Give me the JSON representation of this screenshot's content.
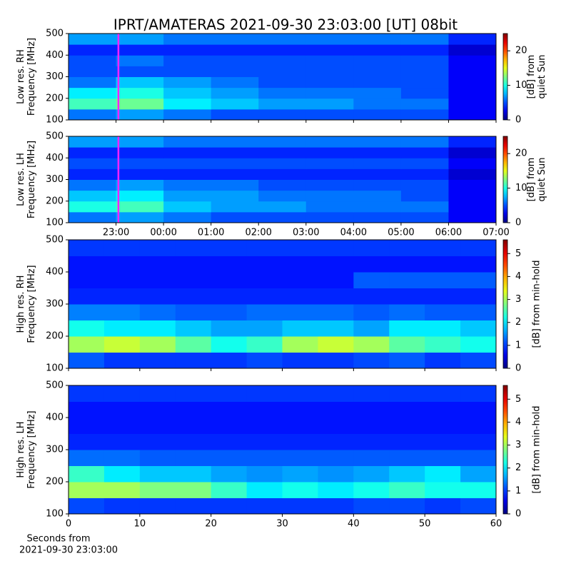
{
  "title": "IPRT/AMATERAS 2021-09-30 23:03:00 [UT]   08bit",
  "chart_data": [
    {
      "type": "heatmap",
      "ylabel": [
        "Low res. RH",
        "Frequency [MHz]"
      ],
      "clabel": [
        "[dB] from",
        "quiet Sun"
      ],
      "sharex": 1,
      "xlim": [
        22,
        31
      ],
      "ylim": [
        100,
        500
      ],
      "yticks": [
        100,
        200,
        300,
        400,
        500
      ],
      "clim": [
        0,
        25
      ],
      "cticks": [
        0,
        10,
        20
      ],
      "colormap": "jet",
      "xbins": [
        22,
        23,
        24,
        25,
        26,
        27,
        28,
        29,
        30,
        31
      ],
      "ybins": [
        100,
        150,
        200,
        250,
        300,
        350,
        400,
        450,
        500
      ],
      "z": [
        [
          6,
          7,
          6,
          5,
          5,
          5,
          5,
          5,
          3
        ],
        [
          11,
          12,
          9,
          8,
          7,
          7,
          6,
          6,
          3
        ],
        [
          9,
          10,
          8,
          7,
          6,
          6,
          6,
          5,
          3
        ],
        [
          6,
          8,
          7,
          6,
          5,
          5,
          5,
          5,
          3
        ],
        [
          5,
          5,
          5,
          5,
          5,
          5,
          5,
          5,
          3
        ],
        [
          5,
          6,
          5,
          5,
          5,
          5,
          5,
          5,
          3
        ],
        [
          4,
          4,
          4,
          4,
          4,
          4,
          4,
          4,
          2
        ],
        [
          7,
          7,
          6,
          6,
          6,
          6,
          6,
          6,
          4
        ]
      ],
      "vline": {
        "x": 23.05,
        "color": "#ff22ff"
      }
    },
    {
      "type": "heatmap",
      "ylabel": [
        "Low res. LH",
        "Frequency [MHz]"
      ],
      "clabel": [
        "[dB] from",
        "quiet Sun"
      ],
      "xlim": [
        22,
        31
      ],
      "xticks": [
        {
          "value": 23,
          "label": "23:00"
        },
        {
          "value": 24,
          "label": "00:00"
        },
        {
          "value": 25,
          "label": "01:00"
        },
        {
          "value": 26,
          "label": "02:00"
        },
        {
          "value": 27,
          "label": "03:00"
        },
        {
          "value": 28,
          "label": "04:00"
        },
        {
          "value": 29,
          "label": "05:00"
        },
        {
          "value": 30,
          "label": "06:00"
        },
        {
          "value": 31,
          "label": "07:00"
        }
      ],
      "ylim": [
        100,
        500
      ],
      "yticks": [
        100,
        200,
        300,
        400,
        500
      ],
      "clim": [
        0,
        25
      ],
      "cticks": [
        0,
        10,
        20
      ],
      "colormap": "jet",
      "xbins": [
        22,
        23,
        24,
        25,
        26,
        27,
        28,
        29,
        30,
        31
      ],
      "ybins": [
        100,
        150,
        200,
        250,
        300,
        350,
        400,
        450,
        500
      ],
      "z": [
        [
          6,
          7,
          6,
          5,
          5,
          5,
          5,
          5,
          3
        ],
        [
          10,
          11,
          8,
          7,
          7,
          6,
          6,
          6,
          3
        ],
        [
          8,
          9,
          7,
          7,
          6,
          6,
          6,
          5,
          3
        ],
        [
          6,
          7,
          6,
          6,
          5,
          5,
          5,
          5,
          3
        ],
        [
          4,
          4,
          4,
          4,
          4,
          4,
          4,
          4,
          2
        ],
        [
          5,
          5,
          5,
          5,
          5,
          5,
          5,
          5,
          3
        ],
        [
          4,
          4,
          4,
          4,
          4,
          4,
          4,
          4,
          2
        ],
        [
          7,
          7,
          6,
          6,
          6,
          6,
          6,
          6,
          4
        ]
      ],
      "vline": {
        "x": 23.05,
        "color": "#ff22ff"
      }
    },
    {
      "type": "heatmap",
      "ylabel": [
        "High res. RH",
        "Frequency [MHz]"
      ],
      "clabel": [
        "[dB] from min-hold"
      ],
      "sharex": 3,
      "xlim": [
        0,
        60
      ],
      "ylim": [
        100,
        500
      ],
      "yticks": [
        100,
        200,
        300,
        400,
        500
      ],
      "clim": [
        0,
        5.6
      ],
      "cticks": [
        0,
        1,
        2,
        3,
        4,
        5
      ],
      "colormap": "jet",
      "xbins": [
        0,
        5,
        10,
        15,
        20,
        25,
        30,
        35,
        40,
        45,
        50,
        55,
        60
      ],
      "ybins": [
        100,
        150,
        200,
        250,
        300,
        350,
        400,
        450,
        500
      ],
      "z": [
        [
          1.2,
          1.0,
          1.0,
          1.0,
          1.0,
          1.1,
          1.0,
          1.0,
          1.1,
          1.2,
          1.0,
          1.1
        ],
        [
          3.0,
          3.2,
          3.0,
          2.6,
          2.2,
          2.4,
          3.0,
          3.2,
          3.0,
          2.6,
          2.4,
          2.2
        ],
        [
          2.2,
          2.0,
          2.0,
          1.8,
          1.6,
          1.6,
          1.8,
          1.8,
          1.6,
          2.0,
          2.0,
          1.8
        ],
        [
          1.4,
          1.4,
          1.3,
          1.2,
          1.2,
          1.3,
          1.3,
          1.3,
          1.2,
          1.3,
          1.2,
          1.2
        ],
        [
          0.9,
          0.9,
          0.9,
          0.9,
          0.9,
          0.9,
          0.9,
          0.9,
          0.9,
          0.9,
          0.9,
          0.9
        ],
        [
          0.8,
          0.8,
          0.8,
          0.8,
          0.8,
          0.8,
          0.8,
          0.8,
          1.2,
          1.2,
          1.2,
          1.2
        ],
        [
          0.8,
          0.8,
          0.8,
          0.8,
          0.8,
          0.8,
          0.8,
          0.8,
          0.8,
          0.8,
          0.8,
          0.8
        ],
        [
          1.0,
          1.0,
          1.0,
          1.0,
          1.0,
          1.0,
          1.0,
          1.0,
          1.0,
          1.0,
          1.0,
          1.0
        ]
      ]
    },
    {
      "type": "heatmap",
      "ylabel": [
        "High res. LH",
        "Frequency [MHz]"
      ],
      "clabel": [
        "[dB] from min-hold"
      ],
      "xlabel": [
        "Seconds from",
        "2021-09-30 23:03:00"
      ],
      "xlim": [
        0,
        60
      ],
      "xticks": [
        0,
        10,
        20,
        30,
        40,
        50,
        60
      ],
      "ylim": [
        100,
        500
      ],
      "yticks": [
        100,
        200,
        300,
        400,
        500
      ],
      "clim": [
        0,
        5.6
      ],
      "cticks": [
        0,
        1,
        2,
        3,
        4,
        5
      ],
      "colormap": "jet",
      "xbins": [
        0,
        5,
        10,
        15,
        20,
        25,
        30,
        35,
        40,
        45,
        50,
        55,
        60
      ],
      "ybins": [
        100,
        150,
        200,
        250,
        300,
        350,
        400,
        450,
        500
      ],
      "z": [
        [
          1.1,
          1.0,
          1.0,
          1.0,
          1.0,
          1.0,
          1.0,
          1.0,
          1.1,
          1.1,
          1.0,
          1.1
        ],
        [
          3.0,
          3.0,
          2.8,
          2.8,
          2.4,
          2.0,
          2.2,
          2.0,
          2.2,
          2.4,
          2.2,
          2.2
        ],
        [
          2.4,
          2.0,
          1.8,
          1.8,
          1.6,
          1.5,
          1.6,
          1.5,
          1.6,
          1.8,
          2.0,
          1.6
        ],
        [
          1.3,
          1.3,
          1.2,
          1.2,
          1.2,
          1.2,
          1.2,
          1.2,
          1.2,
          1.2,
          1.2,
          1.2
        ],
        [
          0.9,
          0.9,
          0.9,
          0.9,
          0.9,
          0.9,
          0.9,
          0.9,
          0.9,
          0.9,
          0.9,
          0.9
        ],
        [
          0.8,
          0.8,
          0.8,
          0.8,
          0.8,
          0.8,
          0.8,
          0.8,
          0.8,
          0.8,
          0.8,
          0.8
        ],
        [
          0.8,
          0.8,
          0.8,
          0.8,
          0.8,
          0.8,
          0.8,
          0.8,
          0.8,
          0.8,
          0.8,
          0.8
        ],
        [
          1.0,
          1.0,
          1.0,
          1.0,
          1.0,
          1.0,
          1.0,
          1.0,
          1.0,
          1.0,
          1.0,
          1.0
        ]
      ]
    }
  ]
}
